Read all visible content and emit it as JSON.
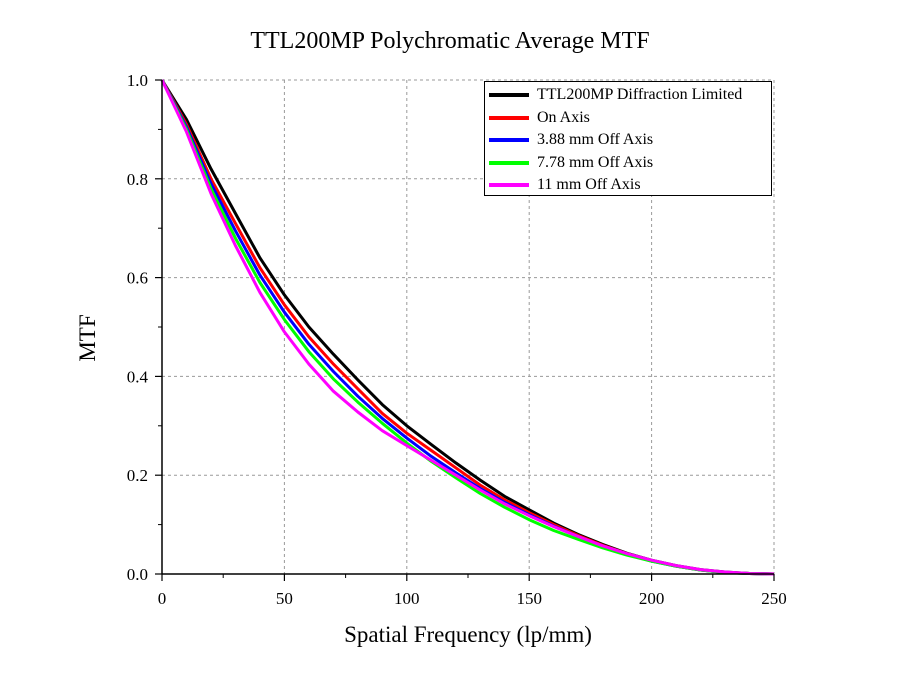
{
  "chart_data": {
    "type": "line",
    "title": "TTL200MP Polychromatic Average MTF",
    "xlabel": "Spatial Frequency (lp/mm)",
    "ylabel": "MTF",
    "xlim": [
      0,
      250
    ],
    "ylim": [
      0,
      1.0
    ],
    "xticks": [
      0,
      50,
      100,
      150,
      200,
      250
    ],
    "yticks": [
      0.0,
      0.2,
      0.4,
      0.6,
      0.8,
      1.0
    ],
    "xtick_labels": [
      "0",
      "50",
      "100",
      "150",
      "200",
      "250"
    ],
    "ytick_labels": [
      "0.0",
      "0.2",
      "0.4",
      "0.6",
      "0.8",
      "1.0"
    ],
    "grid": true,
    "legend_position": "top-right",
    "x": [
      0,
      10,
      20,
      30,
      40,
      50,
      60,
      70,
      80,
      90,
      100,
      110,
      120,
      130,
      140,
      150,
      160,
      170,
      180,
      190,
      200,
      210,
      220,
      230,
      240,
      250
    ],
    "series": [
      {
        "name": "TTL200MP Diffraction Limited",
        "color": "#000000",
        "values": [
          1.0,
          0.92,
          0.82,
          0.73,
          0.64,
          0.565,
          0.5,
          0.445,
          0.393,
          0.343,
          0.3,
          0.262,
          0.225,
          0.19,
          0.157,
          0.13,
          0.103,
          0.08,
          0.06,
          0.042,
          0.028,
          0.017,
          0.009,
          0.004,
          0.001,
          0.0
        ]
      },
      {
        "name": "On Axis",
        "color": "#ff0000",
        "values": [
          1.0,
          0.91,
          0.8,
          0.71,
          0.62,
          0.545,
          0.48,
          0.425,
          0.375,
          0.325,
          0.285,
          0.25,
          0.215,
          0.18,
          0.15,
          0.124,
          0.1,
          0.078,
          0.058,
          0.041,
          0.027,
          0.016,
          0.008,
          0.003,
          0.001,
          0.0
        ]
      },
      {
        "name": "3.88 mm Off Axis",
        "color": "#0000ff",
        "values": [
          1.0,
          0.905,
          0.79,
          0.695,
          0.605,
          0.53,
          0.465,
          0.41,
          0.36,
          0.315,
          0.275,
          0.238,
          0.205,
          0.173,
          0.145,
          0.12,
          0.097,
          0.076,
          0.056,
          0.04,
          0.026,
          0.016,
          0.008,
          0.003,
          0.001,
          0.0
        ]
      },
      {
        "name": "7.78 mm Off Axis",
        "color": "#00ff00",
        "values": [
          1.0,
          0.9,
          0.78,
          0.68,
          0.59,
          0.515,
          0.45,
          0.395,
          0.348,
          0.305,
          0.265,
          0.228,
          0.195,
          0.163,
          0.135,
          0.11,
          0.088,
          0.07,
          0.053,
          0.038,
          0.026,
          0.016,
          0.008,
          0.003,
          0.001,
          0.0
        ]
      },
      {
        "name": "11 mm Off Axis",
        "color": "#ff00ff",
        "values": [
          1.0,
          0.895,
          0.77,
          0.665,
          0.57,
          0.49,
          0.425,
          0.37,
          0.328,
          0.29,
          0.26,
          0.23,
          0.2,
          0.17,
          0.142,
          0.118,
          0.096,
          0.076,
          0.057,
          0.041,
          0.028,
          0.017,
          0.009,
          0.004,
          0.001,
          0.0
        ]
      }
    ]
  }
}
